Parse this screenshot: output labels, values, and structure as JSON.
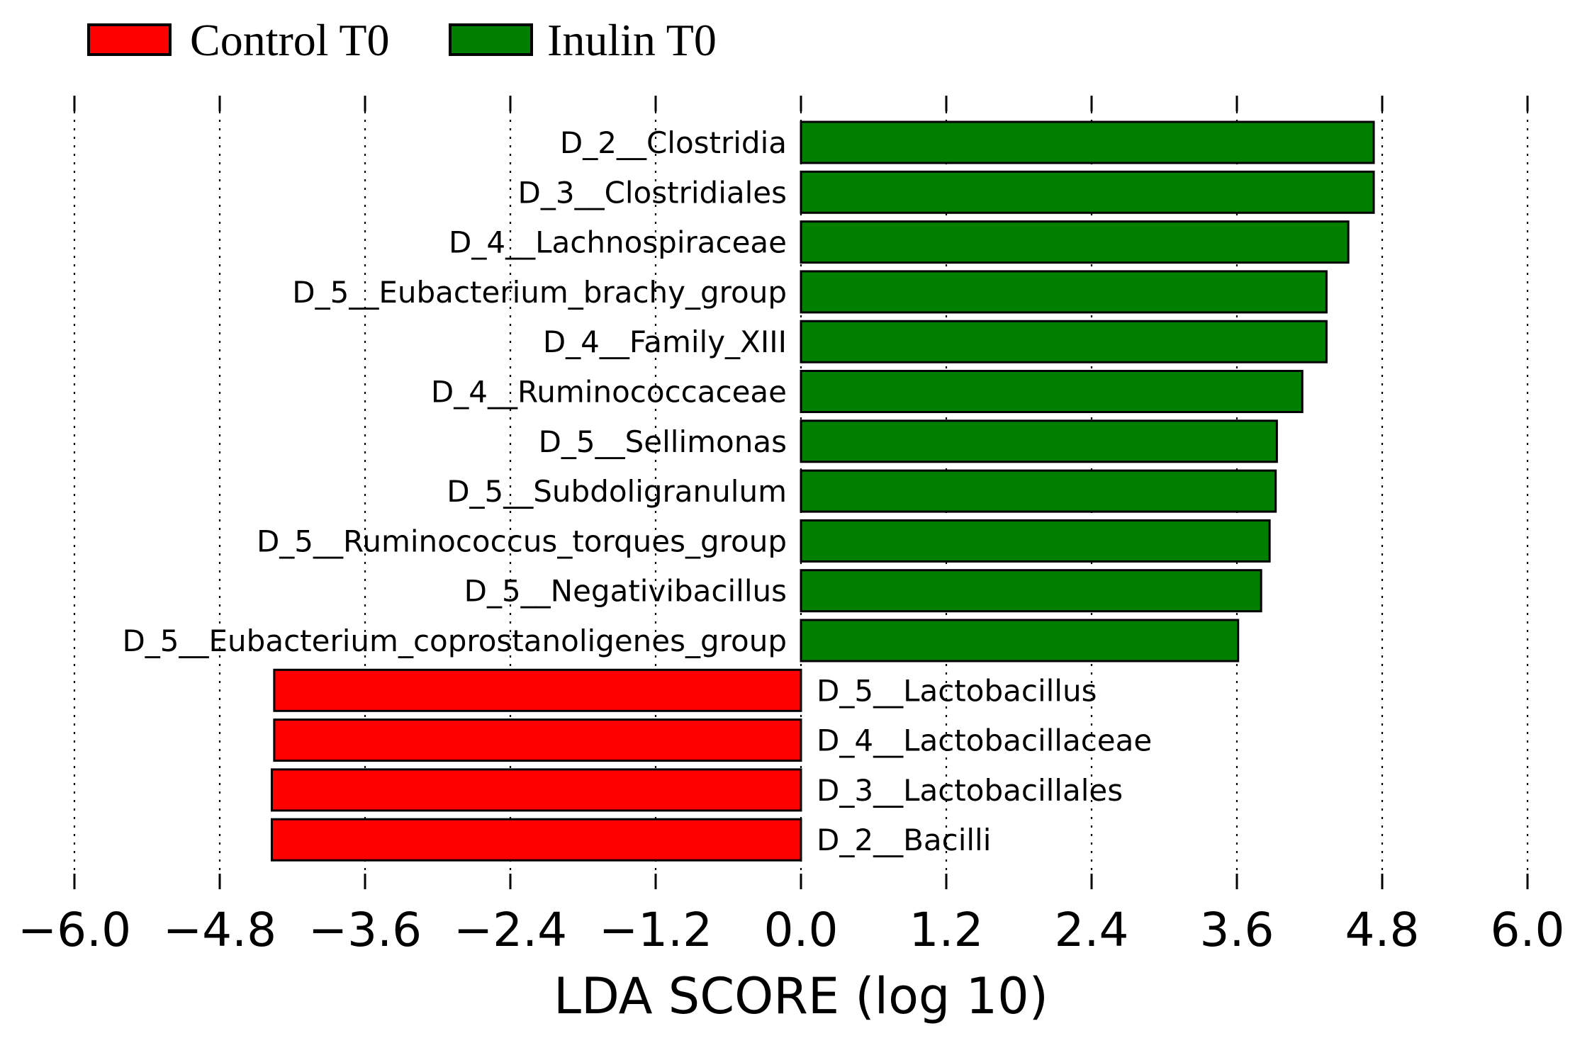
{
  "chart_data": {
    "type": "bar",
    "orientation": "horizontal",
    "xlabel": "LDA SCORE (log 10)",
    "xlim": [
      -6.0,
      6.0
    ],
    "xticks": [
      "−6.0",
      "−4.8",
      "−3.6",
      "−2.4",
      "−1.2",
      "0.0",
      "1.2",
      "2.4",
      "3.6",
      "4.8",
      "6.0"
    ],
    "xtick_values": [
      -6.0,
      -4.8,
      -3.6,
      -2.4,
      -1.2,
      0.0,
      1.2,
      2.4,
      3.6,
      4.8,
      6.0
    ],
    "grid": true,
    "legend_position": "top-left",
    "series": [
      {
        "name": "Control T0",
        "color": "#ff0000"
      },
      {
        "name": "Inulin T0",
        "color": "#007f00"
      }
    ],
    "categories": [
      "D_2__Clostridia",
      "D_3__Clostridiales",
      "D_4__Lachnospiraceae",
      "D_5__Eubacterium_brachy_group",
      "D_4__Family_XIII",
      "D_4__Ruminococcaceae",
      "D_5__Sellimonas",
      "D_5__Subdoligranulum",
      "D_5__Ruminococcus_torques_group",
      "D_5__Negativibacillus",
      "D_5__Eubacterium_coprostanoligenes_group",
      "D_5__Lactobacillus",
      "D_4__Lactobacillaceae",
      "D_3__Lactobacillales",
      "D_2__Bacilli"
    ],
    "values": [
      4.73,
      4.73,
      4.52,
      4.34,
      4.34,
      4.14,
      3.93,
      3.92,
      3.87,
      3.8,
      3.61,
      -4.35,
      -4.35,
      -4.37,
      -4.37
    ],
    "groups": [
      "Inulin T0",
      "Inulin T0",
      "Inulin T0",
      "Inulin T0",
      "Inulin T0",
      "Inulin T0",
      "Inulin T0",
      "Inulin T0",
      "Inulin T0",
      "Inulin T0",
      "Inulin T0",
      "Control T0",
      "Control T0",
      "Control T0",
      "Control T0"
    ]
  }
}
